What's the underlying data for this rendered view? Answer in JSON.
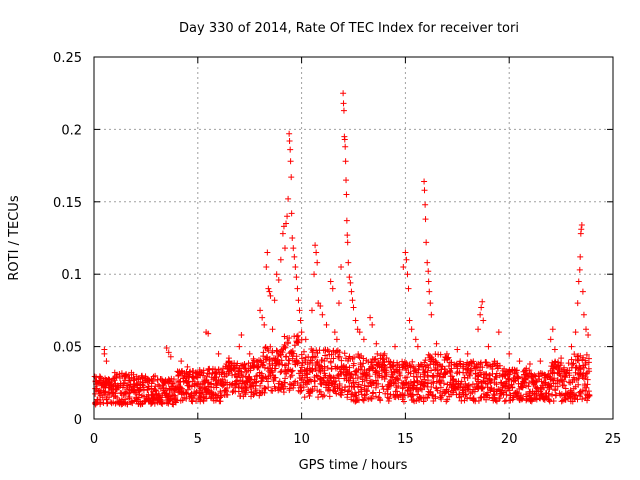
{
  "chart_data": {
    "type": "scatter",
    "title": "Day 330 of 2014, Rate Of TEC Index for receiver tori",
    "xlabel": "GPS time / hours",
    "ylabel": "ROTI / TECUs",
    "xlim": [
      0,
      25
    ],
    "ylim": [
      0,
      0.25
    ],
    "xticks": [
      0,
      5,
      10,
      15,
      20,
      25
    ],
    "xtick_labels": [
      "0",
      "5",
      "10",
      "15",
      "20",
      "25"
    ],
    "yticks": [
      0,
      0.05,
      0.1,
      0.15,
      0.2,
      0.25
    ],
    "ytick_labels": [
      "0",
      "0.05",
      "0.1",
      "0.15",
      "0.2",
      "0.25"
    ],
    "grid": true,
    "marker": "plus",
    "color": "#ff0000",
    "series": [
      {
        "points": [
          [
            0.5,
            0.048
          ],
          [
            0.5,
            0.045
          ],
          [
            0.6,
            0.04
          ],
          [
            1.0,
            0.032
          ],
          [
            1.5,
            0.03
          ],
          [
            2.5,
            0.028
          ],
          [
            3.5,
            0.049
          ],
          [
            3.6,
            0.046
          ],
          [
            3.7,
            0.043
          ],
          [
            4.2,
            0.04
          ],
          [
            4.5,
            0.036
          ],
          [
            5.4,
            0.06
          ],
          [
            5.5,
            0.059
          ],
          [
            6.0,
            0.045
          ],
          [
            6.5,
            0.042
          ],
          [
            7.0,
            0.05
          ],
          [
            7.1,
            0.058
          ],
          [
            7.5,
            0.045
          ],
          [
            8.0,
            0.075
          ],
          [
            8.1,
            0.07
          ],
          [
            8.2,
            0.065
          ],
          [
            8.3,
            0.105
          ],
          [
            8.35,
            0.115
          ],
          [
            8.4,
            0.09
          ],
          [
            8.45,
            0.088
          ],
          [
            8.5,
            0.085
          ],
          [
            8.6,
            0.062
          ],
          [
            8.7,
            0.082
          ],
          [
            8.8,
            0.1
          ],
          [
            8.9,
            0.096
          ],
          [
            9.0,
            0.11
          ],
          [
            9.1,
            0.128
          ],
          [
            9.15,
            0.133
          ],
          [
            9.2,
            0.118
          ],
          [
            9.25,
            0.135
          ],
          [
            9.3,
            0.14
          ],
          [
            9.35,
            0.152
          ],
          [
            9.4,
            0.197
          ],
          [
            9.42,
            0.192
          ],
          [
            9.45,
            0.186
          ],
          [
            9.47,
            0.178
          ],
          [
            9.5,
            0.167
          ],
          [
            9.52,
            0.142
          ],
          [
            9.55,
            0.125
          ],
          [
            9.6,
            0.118
          ],
          [
            9.65,
            0.112
          ],
          [
            9.7,
            0.105
          ],
          [
            9.75,
            0.098
          ],
          [
            9.8,
            0.09
          ],
          [
            9.85,
            0.082
          ],
          [
            9.9,
            0.075
          ],
          [
            9.95,
            0.068
          ],
          [
            10.0,
            0.06
          ],
          [
            10.2,
            0.055
          ],
          [
            10.5,
            0.075
          ],
          [
            10.6,
            0.1
          ],
          [
            10.65,
            0.12
          ],
          [
            10.7,
            0.115
          ],
          [
            10.75,
            0.108
          ],
          [
            10.8,
            0.08
          ],
          [
            10.9,
            0.078
          ],
          [
            11.0,
            0.072
          ],
          [
            11.2,
            0.065
          ],
          [
            11.4,
            0.095
          ],
          [
            11.5,
            0.09
          ],
          [
            11.6,
            0.06
          ],
          [
            11.7,
            0.055
          ],
          [
            11.8,
            0.08
          ],
          [
            11.9,
            0.105
          ],
          [
            12.0,
            0.225
          ],
          [
            12.02,
            0.218
          ],
          [
            12.04,
            0.213
          ],
          [
            12.06,
            0.195
          ],
          [
            12.08,
            0.193
          ],
          [
            12.1,
            0.188
          ],
          [
            12.12,
            0.178
          ],
          [
            12.14,
            0.165
          ],
          [
            12.16,
            0.155
          ],
          [
            12.18,
            0.137
          ],
          [
            12.2,
            0.127
          ],
          [
            12.22,
            0.122
          ],
          [
            12.25,
            0.108
          ],
          [
            12.3,
            0.098
          ],
          [
            12.35,
            0.094
          ],
          [
            12.4,
            0.088
          ],
          [
            12.45,
            0.082
          ],
          [
            12.5,
            0.077
          ],
          [
            12.6,
            0.068
          ],
          [
            12.7,
            0.062
          ],
          [
            12.8,
            0.06
          ],
          [
            13.0,
            0.055
          ],
          [
            13.3,
            0.07
          ],
          [
            13.4,
            0.065
          ],
          [
            13.6,
            0.052
          ],
          [
            14.0,
            0.045
          ],
          [
            14.5,
            0.05
          ],
          [
            14.9,
            0.105
          ],
          [
            15.0,
            0.115
          ],
          [
            15.05,
            0.11
          ],
          [
            15.1,
            0.1
          ],
          [
            15.15,
            0.09
          ],
          [
            15.2,
            0.068
          ],
          [
            15.3,
            0.062
          ],
          [
            15.5,
            0.055
          ],
          [
            15.6,
            0.05
          ],
          [
            15.9,
            0.164
          ],
          [
            15.92,
            0.158
          ],
          [
            15.95,
            0.148
          ],
          [
            15.97,
            0.138
          ],
          [
            16.0,
            0.122
          ],
          [
            16.05,
            0.108
          ],
          [
            16.1,
            0.102
          ],
          [
            16.12,
            0.095
          ],
          [
            16.15,
            0.088
          ],
          [
            16.2,
            0.08
          ],
          [
            16.25,
            0.072
          ],
          [
            16.5,
            0.052
          ],
          [
            17.0,
            0.045
          ],
          [
            17.5,
            0.048
          ],
          [
            18.0,
            0.045
          ],
          [
            18.5,
            0.062
          ],
          [
            18.6,
            0.072
          ],
          [
            18.65,
            0.077
          ],
          [
            18.7,
            0.081
          ],
          [
            18.75,
            0.068
          ],
          [
            19.0,
            0.05
          ],
          [
            19.5,
            0.06
          ],
          [
            20.0,
            0.045
          ],
          [
            20.5,
            0.04
          ],
          [
            21.0,
            0.038
          ],
          [
            21.5,
            0.04
          ],
          [
            22.0,
            0.055
          ],
          [
            22.1,
            0.062
          ],
          [
            22.2,
            0.048
          ],
          [
            22.5,
            0.042
          ],
          [
            23.0,
            0.05
          ],
          [
            23.2,
            0.06
          ],
          [
            23.3,
            0.08
          ],
          [
            23.35,
            0.095
          ],
          [
            23.4,
            0.103
          ],
          [
            23.42,
            0.112
          ],
          [
            23.45,
            0.128
          ],
          [
            23.47,
            0.131
          ],
          [
            23.5,
            0.134
          ],
          [
            23.55,
            0.088
          ],
          [
            23.6,
            0.072
          ],
          [
            23.7,
            0.062
          ],
          [
            23.8,
            0.058
          ]
        ],
        "dense_band": {
          "x_start": 0.0,
          "x_end": 23.9,
          "x_step": 0.1,
          "y_floor": [
            0.01,
            0.01,
            0.01,
            0.01,
            0.012,
            0.012,
            0.015,
            0.015,
            0.018,
            0.018,
            0.015,
            0.015,
            0.012,
            0.012,
            0.012,
            0.012,
            0.012,
            0.012,
            0.012,
            0.012,
            0.012,
            0.012,
            0.012,
            0.012
          ],
          "y_ceiling": [
            0.03,
            0.032,
            0.03,
            0.028,
            0.035,
            0.035,
            0.04,
            0.042,
            0.05,
            0.058,
            0.05,
            0.048,
            0.045,
            0.045,
            0.04,
            0.042,
            0.045,
            0.04,
            0.04,
            0.04,
            0.035,
            0.032,
            0.04,
            0.045
          ]
        }
      }
    ]
  }
}
